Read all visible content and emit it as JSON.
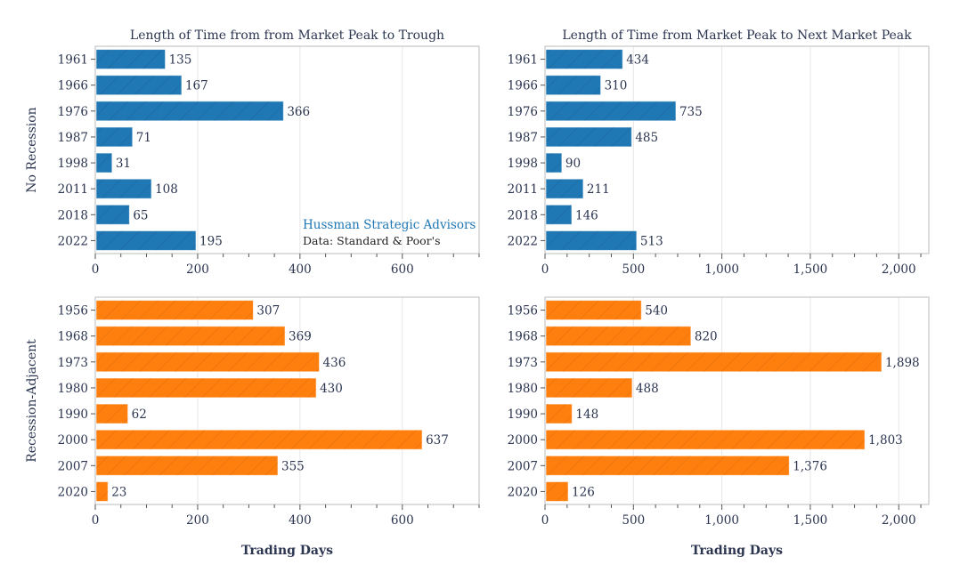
{
  "chart_data": [
    {
      "type": "bar",
      "orientation": "horizontal",
      "title": "Length of Time from from Market Peak to Trough",
      "ylabel": "No Recession",
      "xlabel": "",
      "categories": [
        "1961",
        "1966",
        "1976",
        "1987",
        "1998",
        "2011",
        "2018",
        "2022"
      ],
      "values": [
        135,
        167,
        366,
        71,
        31,
        108,
        65,
        195
      ],
      "xlim": [
        0,
        750
      ],
      "xticks": [
        0,
        200,
        400,
        600
      ],
      "color": "#1f77b4",
      "grid": true,
      "annotations": [
        "Hussman Strategic Advisors",
        "Data: Standard & Poor's"
      ]
    },
    {
      "type": "bar",
      "orientation": "horizontal",
      "title": "Length of Time from Market Peak to Next Market Peak",
      "xlabel": "",
      "categories": [
        "1961",
        "1966",
        "1976",
        "1987",
        "1998",
        "2011",
        "2018",
        "2022"
      ],
      "values": [
        434,
        310,
        735,
        485,
        90,
        211,
        146,
        513
      ],
      "xlim": [
        0,
        2170
      ],
      "xticks": [
        0,
        500,
        1000,
        1500,
        2000
      ],
      "color": "#1f77b4",
      "grid": true
    },
    {
      "type": "bar",
      "orientation": "horizontal",
      "title": "",
      "ylabel": "Recession-Adjacent",
      "xlabel": "Trading Days",
      "categories": [
        "1956",
        "1968",
        "1973",
        "1980",
        "1990",
        "2000",
        "2007",
        "2020"
      ],
      "values": [
        307,
        369,
        436,
        430,
        62,
        637,
        355,
        23
      ],
      "xlim": [
        0,
        750
      ],
      "xticks": [
        0,
        200,
        400,
        600
      ],
      "color": "#ff7f0e",
      "grid": true
    },
    {
      "type": "bar",
      "orientation": "horizontal",
      "title": "",
      "xlabel": "Trading Days",
      "categories": [
        "1956",
        "1968",
        "1973",
        "1980",
        "1990",
        "2000",
        "2007",
        "2020"
      ],
      "values": [
        540,
        820,
        1898,
        488,
        148,
        1803,
        1376,
        126
      ],
      "xlim": [
        0,
        2170
      ],
      "xticks": [
        0,
        500,
        1000,
        1500,
        2000
      ],
      "color": "#ff7f0e",
      "grid": true
    }
  ],
  "watermark": {
    "brand": "Hussman Strategic Advisors",
    "source": "Data: Standard & Poor's",
    "brand_color": "#1f77b4"
  }
}
